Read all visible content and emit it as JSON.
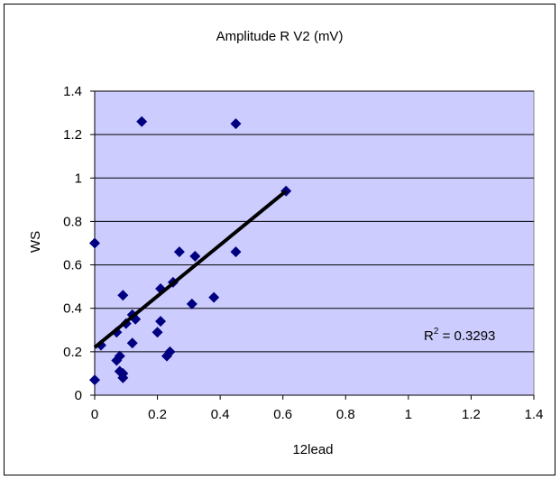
{
  "colors": {
    "plot_area": "#ccccff",
    "gridline": "#000000",
    "marker": "#000080",
    "trendline": "#000000"
  },
  "chart_data": {
    "type": "scatter",
    "title": "Amplitude R V2 (mV)",
    "xlabel": "12lead",
    "ylabel": "WS",
    "xlim": [
      0,
      1.4
    ],
    "ylim": [
      0,
      1.4
    ],
    "x_ticks": [
      "0",
      "0.2",
      "0.4",
      "0.6",
      "0.8",
      "1",
      "1.2",
      "1.4"
    ],
    "y_ticks": [
      "0",
      "0.2",
      "0.4",
      "0.6",
      "0.8",
      "1",
      "1.2",
      "1.4"
    ],
    "grid": "horizontal",
    "legend": "none",
    "marker": "diamond",
    "points": [
      {
        "x": 0.0,
        "y": 0.07
      },
      {
        "x": 0.0,
        "y": 0.7
      },
      {
        "x": 0.02,
        "y": 0.23
      },
      {
        "x": 0.07,
        "y": 0.16
      },
      {
        "x": 0.07,
        "y": 0.29
      },
      {
        "x": 0.08,
        "y": 0.18
      },
      {
        "x": 0.08,
        "y": 0.11
      },
      {
        "x": 0.09,
        "y": 0.1
      },
      {
        "x": 0.09,
        "y": 0.08
      },
      {
        "x": 0.09,
        "y": 0.46
      },
      {
        "x": 0.1,
        "y": 0.33
      },
      {
        "x": 0.12,
        "y": 0.37
      },
      {
        "x": 0.12,
        "y": 0.24
      },
      {
        "x": 0.13,
        "y": 0.35
      },
      {
        "x": 0.15,
        "y": 1.26
      },
      {
        "x": 0.2,
        "y": 0.29
      },
      {
        "x": 0.21,
        "y": 0.34
      },
      {
        "x": 0.21,
        "y": 0.49
      },
      {
        "x": 0.23,
        "y": 0.18
      },
      {
        "x": 0.24,
        "y": 0.2
      },
      {
        "x": 0.25,
        "y": 0.52
      },
      {
        "x": 0.27,
        "y": 0.66
      },
      {
        "x": 0.31,
        "y": 0.42
      },
      {
        "x": 0.32,
        "y": 0.64
      },
      {
        "x": 0.38,
        "y": 0.45
      },
      {
        "x": 0.45,
        "y": 0.66
      },
      {
        "x": 0.45,
        "y": 1.25
      },
      {
        "x": 0.61,
        "y": 0.94
      }
    ],
    "trendline": {
      "x": [
        0.0,
        0.61
      ],
      "y": [
        0.22,
        0.94
      ]
    },
    "annotation": {
      "prefix": "R",
      "superscript": "2",
      "suffix": " = 0.3293"
    }
  }
}
